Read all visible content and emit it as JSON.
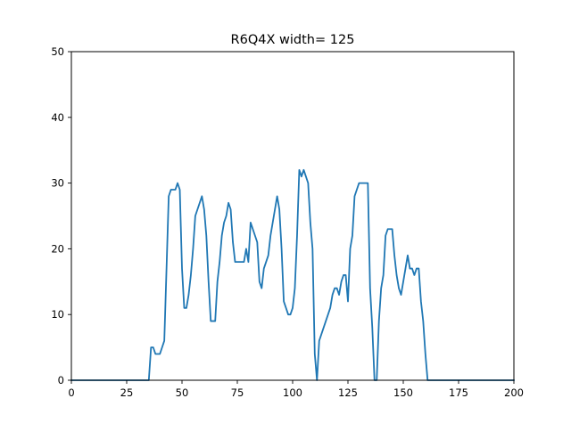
{
  "chart_data": {
    "type": "line",
    "title": "R6Q4X width= 125",
    "xlabel": "",
    "ylabel": "",
    "xlim": [
      0,
      200
    ],
    "ylim": [
      0,
      50
    ],
    "x_ticks": [
      0,
      25,
      50,
      75,
      100,
      125,
      150,
      175,
      200
    ],
    "y_ticks": [
      0,
      10,
      20,
      30,
      40,
      50
    ],
    "grid": false,
    "legend": "none",
    "line_color": "#1f77b4",
    "series": [
      {
        "name": "",
        "points": [
          [
            0,
            0
          ],
          [
            35,
            0
          ],
          [
            36,
            5
          ],
          [
            37,
            5
          ],
          [
            38,
            4
          ],
          [
            40,
            4
          ],
          [
            41,
            5
          ],
          [
            42,
            6
          ],
          [
            43,
            17
          ],
          [
            44,
            28
          ],
          [
            45,
            29
          ],
          [
            47,
            29
          ],
          [
            48,
            30
          ],
          [
            49,
            29
          ],
          [
            50,
            17
          ],
          [
            51,
            11
          ],
          [
            52,
            11
          ],
          [
            53,
            13
          ],
          [
            54,
            16
          ],
          [
            55,
            20
          ],
          [
            56,
            25
          ],
          [
            57,
            26
          ],
          [
            58,
            27
          ],
          [
            59,
            28
          ],
          [
            60,
            26
          ],
          [
            61,
            22
          ],
          [
            62,
            15
          ],
          [
            63,
            9
          ],
          [
            65,
            9
          ],
          [
            66,
            15
          ],
          [
            67,
            18
          ],
          [
            68,
            22
          ],
          [
            69,
            24
          ],
          [
            70,
            25
          ],
          [
            71,
            27
          ],
          [
            72,
            26
          ],
          [
            73,
            21
          ],
          [
            74,
            18
          ],
          [
            76,
            18
          ],
          [
            78,
            18
          ],
          [
            79,
            20
          ],
          [
            80,
            18
          ],
          [
            81,
            24
          ],
          [
            82,
            23
          ],
          [
            83,
            22
          ],
          [
            84,
            21
          ],
          [
            85,
            15
          ],
          [
            86,
            14
          ],
          [
            87,
            17
          ],
          [
            88,
            18
          ],
          [
            89,
            19
          ],
          [
            90,
            22
          ],
          [
            91,
            24
          ],
          [
            92,
            26
          ],
          [
            93,
            28
          ],
          [
            94,
            26
          ],
          [
            95,
            20
          ],
          [
            96,
            12
          ],
          [
            97,
            11
          ],
          [
            98,
            10
          ],
          [
            99,
            10
          ],
          [
            100,
            11
          ],
          [
            101,
            14
          ],
          [
            102,
            22
          ],
          [
            103,
            32
          ],
          [
            104,
            31
          ],
          [
            105,
            32
          ],
          [
            106,
            31
          ],
          [
            107,
            30
          ],
          [
            108,
            24
          ],
          [
            109,
            20
          ],
          [
            110,
            4
          ],
          [
            111,
            0
          ],
          [
            112,
            6
          ],
          [
            113,
            7
          ],
          [
            114,
            8
          ],
          [
            115,
            9
          ],
          [
            116,
            10
          ],
          [
            117,
            11
          ],
          [
            118,
            13
          ],
          [
            119,
            14
          ],
          [
            120,
            14
          ],
          [
            121,
            13
          ],
          [
            122,
            15
          ],
          [
            123,
            16
          ],
          [
            124,
            16
          ],
          [
            125,
            12
          ],
          [
            126,
            20
          ],
          [
            127,
            22
          ],
          [
            128,
            28
          ],
          [
            129,
            29
          ],
          [
            130,
            30
          ],
          [
            132,
            30
          ],
          [
            134,
            30
          ],
          [
            135,
            14
          ],
          [
            136,
            8
          ],
          [
            137,
            0
          ],
          [
            138,
            0
          ],
          [
            139,
            9
          ],
          [
            140,
            14
          ],
          [
            141,
            16
          ],
          [
            142,
            22
          ],
          [
            143,
            23
          ],
          [
            145,
            23
          ],
          [
            146,
            19
          ],
          [
            147,
            16
          ],
          [
            148,
            14
          ],
          [
            149,
            13
          ],
          [
            150,
            15
          ],
          [
            151,
            17
          ],
          [
            152,
            19
          ],
          [
            153,
            17
          ],
          [
            154,
            17
          ],
          [
            155,
            16
          ],
          [
            156,
            17
          ],
          [
            157,
            17
          ],
          [
            158,
            12
          ],
          [
            159,
            9
          ],
          [
            160,
            4
          ],
          [
            161,
            0
          ],
          [
            200,
            0
          ]
        ]
      }
    ]
  }
}
